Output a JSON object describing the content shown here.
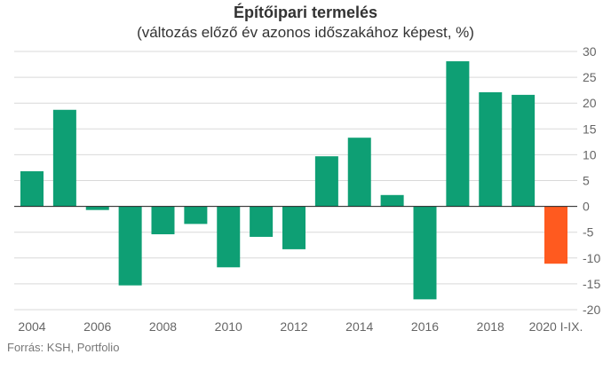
{
  "chart_data": {
    "type": "bar",
    "title": "Építőipari termelés",
    "subtitle": "(változás előző év azonos időszakához képest, %)",
    "categories": [
      "2004",
      "2005",
      "2006",
      "2007",
      "2008",
      "2009",
      "2010",
      "2011",
      "2012",
      "2013",
      "2014",
      "2015",
      "2016",
      "2017",
      "2018",
      "2019",
      "2020 I-IX."
    ],
    "x_tick_labels": [
      "2004",
      "",
      "2006",
      "",
      "2008",
      "",
      "2010",
      "",
      "2012",
      "",
      "2014",
      "",
      "2016",
      "",
      "2018",
      "",
      "2020 I-IX."
    ],
    "values": [
      6.8,
      18.7,
      -0.7,
      -15.3,
      -5.4,
      -3.4,
      -11.8,
      -5.9,
      -8.3,
      9.7,
      13.3,
      2.2,
      -18.0,
      28.1,
      22.1,
      21.6,
      -11.1
    ],
    "colors": [
      "#0e9f74",
      "#0e9f74",
      "#0e9f74",
      "#0e9f74",
      "#0e9f74",
      "#0e9f74",
      "#0e9f74",
      "#0e9f74",
      "#0e9f74",
      "#0e9f74",
      "#0e9f74",
      "#0e9f74",
      "#0e9f74",
      "#0e9f74",
      "#0e9f74",
      "#0e9f74",
      "#ff5a1f"
    ],
    "ylim": [
      -20,
      30
    ],
    "y_ticks": [
      -20,
      -15,
      -10,
      -5,
      0,
      5,
      10,
      15,
      20,
      25,
      30
    ],
    "y_axis_position": "right",
    "grid": true,
    "xlabel": "",
    "ylabel": ""
  },
  "source": "Forrás: KSH, Portfolio"
}
